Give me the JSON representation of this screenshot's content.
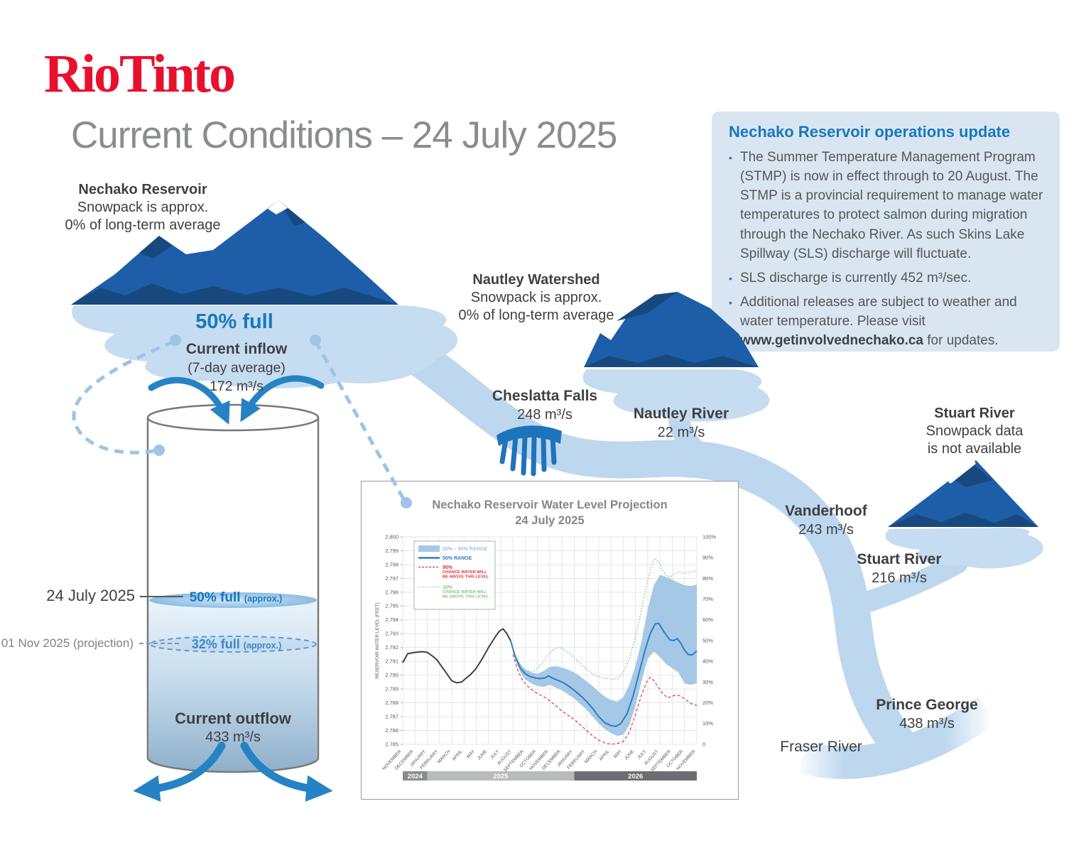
{
  "brand": {
    "logo": "Rio Tinto",
    "color": "#e8112d"
  },
  "title": "Current Conditions – 24 July 2025",
  "update_box": {
    "heading": "Nechako Reservoir operations update",
    "heading_color": "#1878be",
    "bullets": [
      "The Summer Temperature Management Program (STMP) is now in effect through to 20 August. The STMP is a provincial requirement to manage water temperatures to protect salmon during migration through the Nechako River. As such Skins Lake Spillway (SLS) discharge will fluctuate.",
      "SLS discharge is currently 452 m³/sec."
    ],
    "bullet3": {
      "pre": "Additional releases are subject to weather and water temperature. Please visit ",
      "link": "www.getinvolvednechako.ca",
      "post": " for updates."
    }
  },
  "nechako": {
    "name": "Nechako Reservoir",
    "line2": "Snowpack is approx.",
    "line3": "0% of long-term average",
    "fullness": "50% full"
  },
  "inflow": {
    "label": "Current inflow",
    "sub": "(7-day average)",
    "value": "172 m³/s"
  },
  "tank": {
    "now_date": "24 July 2025",
    "now_level": "50% full",
    "now_note": "(approx.)",
    "proj_date": "01 Nov 2025 (projection)",
    "proj_level": "32% full",
    "proj_note": "(approx.)"
  },
  "outflow": {
    "label": "Current outflow",
    "value": "433 m³/s"
  },
  "nautley_watershed": {
    "name": "Nautley Watershed",
    "line2": "Snowpack is approx.",
    "line3": "0% of long-term average"
  },
  "cheslatta": {
    "name": "Cheslatta Falls",
    "value": "248 m³/s"
  },
  "nautley_river": {
    "name": "Nautley River",
    "value": "22 m³/s"
  },
  "stuart_watershed": {
    "name": "Stuart River",
    "line2": "Snowpack data",
    "line3": "is not available"
  },
  "vanderhoof": {
    "name": "Vanderhoof",
    "value": "243 m³/s"
  },
  "stuart_river": {
    "name": "Stuart River",
    "value": "216 m³/s"
  },
  "prince_george": {
    "name": "Prince George",
    "value": "438 m³/s"
  },
  "fraser_river": {
    "name": "Fraser River"
  },
  "colors": {
    "river": "#bdd7ee",
    "reservoir_blob": "#c6dcf0",
    "mountain": "#1e5ea9",
    "mountain_shadow": "#17497f",
    "arrow_blue": "#2583c5",
    "accent_blue": "#1878be",
    "brand_red": "#e8112d"
  },
  "chart_data": {
    "type": "line",
    "title_line1": "Nechako Reservoir Water Level Projection",
    "title_line2": "24 July 2025",
    "ylabel": "RESERVOIR WATER LEVEL (FEET)",
    "ylim": [
      2785,
      2800
    ],
    "y2lim": [
      0,
      100
    ],
    "y2_suffix": "%",
    "grid": true,
    "legend_position": "top-left",
    "months": [
      "NOVEMBER",
      "DECEMBER",
      "JANUARY",
      "FEBRUARY",
      "MARCH",
      "APRIL",
      "MAY",
      "JUNE",
      "JULY",
      "AUGUST",
      "SEPTEMBER",
      "OCTOBER",
      "NOVEMBER",
      "DECEMBER",
      "JANUARY",
      "FEBRUARY",
      "MARCH",
      "APRIL",
      "MAY",
      "JUNE",
      "JULY",
      "AUGUST",
      "SEPTEMBER",
      "OCTOBER",
      "NOVEMBER"
    ],
    "year_bar": [
      {
        "label": "2024",
        "from": 0,
        "to": 2,
        "color": "#8a8c8e"
      },
      {
        "label": "2025",
        "from": 2,
        "to": 14,
        "color": "#b9babc"
      },
      {
        "label": "2026",
        "from": 14,
        "to": 24,
        "color": "#6d6e71"
      }
    ],
    "legend": [
      {
        "type": "area",
        "color": "#a5c8e6",
        "text_color": "#9dc3e6",
        "label": "20% – 80% RANGE"
      },
      {
        "type": "line",
        "color": "#2e7ec0",
        "text_color": "#2e7ec0",
        "label": "50% RANGE"
      },
      {
        "type": "dash",
        "color": "#e0313a",
        "text_color": "#e0313a",
        "label": "90%",
        "sub": [
          "CHANCE WATER WILL",
          "BE ABOVE THIS LEVEL"
        ]
      },
      {
        "type": "dot",
        "color": "#6cbf70",
        "text_color": "#7fc47f",
        "label": "10%",
        "sub": [
          "CHANCE WATER WILL",
          "BE ABOVE THIS LEVEL"
        ]
      }
    ],
    "series": {
      "historical": {
        "name": "Observed water level",
        "color": "#3f4042",
        "points": [
          [
            0,
            2790.9
          ],
          [
            0.4,
            2791.55
          ],
          [
            1,
            2791.65
          ],
          [
            1.6,
            2791.7
          ],
          [
            2,
            2791.65
          ],
          [
            2.4,
            2791.4
          ],
          [
            2.8,
            2791.1
          ],
          [
            3.2,
            2790.6
          ],
          [
            3.6,
            2790.1
          ],
          [
            4,
            2789.6
          ],
          [
            4.4,
            2789.45
          ],
          [
            4.8,
            2789.5
          ],
          [
            5.2,
            2789.8
          ],
          [
            5.6,
            2790.1
          ],
          [
            6,
            2790.5
          ],
          [
            6.5,
            2791.2
          ],
          [
            7,
            2792.0
          ],
          [
            7.5,
            2792.7
          ],
          [
            7.9,
            2793.2
          ],
          [
            8.2,
            2793.35
          ],
          [
            8.5,
            2793.0
          ],
          [
            8.8,
            2792.5
          ]
        ]
      },
      "median": {
        "name": "50% RANGE",
        "color": "#2e7ec0",
        "points": [
          [
            8.8,
            2792.5
          ],
          [
            9.2,
            2791.3
          ],
          [
            9.6,
            2790.5
          ],
          [
            10,
            2790.1
          ],
          [
            10.4,
            2789.9
          ],
          [
            10.8,
            2789.8
          ],
          [
            11.2,
            2789.75
          ],
          [
            11.6,
            2789.8
          ],
          [
            11.9,
            2789.95
          ],
          [
            12.2,
            2789.8
          ],
          [
            12.6,
            2789.65
          ],
          [
            13,
            2789.5
          ],
          [
            13.4,
            2789.3
          ],
          [
            14,
            2788.9
          ],
          [
            14.6,
            2788.45
          ],
          [
            15,
            2788.1
          ],
          [
            15.5,
            2787.6
          ],
          [
            16,
            2787.0
          ],
          [
            16.5,
            2786.55
          ],
          [
            17,
            2786.35
          ],
          [
            17.4,
            2786.3
          ],
          [
            17.8,
            2786.5
          ],
          [
            18.3,
            2787.2
          ],
          [
            18.8,
            2788.5
          ],
          [
            19.3,
            2790.2
          ],
          [
            19.8,
            2791.9
          ],
          [
            20.2,
            2793.0
          ],
          [
            20.6,
            2793.7
          ],
          [
            20.9,
            2793.75
          ],
          [
            21.2,
            2793.3
          ],
          [
            21.5,
            2792.9
          ],
          [
            21.8,
            2792.55
          ],
          [
            22.1,
            2792.5
          ],
          [
            22.4,
            2792.65
          ],
          [
            22.7,
            2792.3
          ],
          [
            23,
            2791.8
          ],
          [
            23.3,
            2791.5
          ],
          [
            23.6,
            2791.45
          ],
          [
            23.8,
            2791.6
          ],
          [
            24,
            2791.75
          ]
        ]
      },
      "p90": {
        "name": "90% CHANCE WATER WILL BE ABOVE THIS LEVEL",
        "color": "#e0313a",
        "dash": "4,3",
        "points": [
          [
            9,
            2791.5
          ],
          [
            9.4,
            2790.3
          ],
          [
            9.8,
            2789.6
          ],
          [
            10.2,
            2789.2
          ],
          [
            10.6,
            2788.9
          ],
          [
            11,
            2788.65
          ],
          [
            11.4,
            2788.5
          ],
          [
            11.8,
            2788.3
          ],
          [
            12.2,
            2788.0
          ],
          [
            12.6,
            2787.7
          ],
          [
            13,
            2787.4
          ],
          [
            13.5,
            2787.1
          ],
          [
            14,
            2786.8
          ],
          [
            14.5,
            2786.4
          ],
          [
            15,
            2786.0
          ],
          [
            15.5,
            2785.6
          ],
          [
            16,
            2785.3
          ],
          [
            16.5,
            2785.1
          ],
          [
            17,
            2785.0
          ],
          [
            17.5,
            2785.05
          ],
          [
            18,
            2785.2
          ],
          [
            18.5,
            2785.9
          ],
          [
            19,
            2787.2
          ],
          [
            19.5,
            2788.6
          ],
          [
            19.9,
            2789.5
          ],
          [
            20.2,
            2789.85
          ],
          [
            20.5,
            2789.6
          ],
          [
            20.8,
            2789.2
          ],
          [
            21.2,
            2788.7
          ],
          [
            21.6,
            2788.35
          ],
          [
            22,
            2788.5
          ],
          [
            22.5,
            2788.55
          ],
          [
            23,
            2788.3
          ],
          [
            23.5,
            2787.95
          ],
          [
            24,
            2787.8
          ]
        ]
      },
      "p10": {
        "name": "10% CHANCE WATER WILL BE ABOVE THIS LEVEL",
        "color": "#6cbf70",
        "dash": "1.5,2.5",
        "points": [
          [
            9,
            2791.7
          ],
          [
            9.4,
            2790.9
          ],
          [
            9.8,
            2790.5
          ],
          [
            10.2,
            2790.3
          ],
          [
            10.6,
            2790.25
          ],
          [
            11,
            2790.5
          ],
          [
            11.4,
            2790.9
          ],
          [
            11.8,
            2791.4
          ],
          [
            12.2,
            2791.8
          ],
          [
            12.6,
            2792.0
          ],
          [
            13,
            2791.95
          ],
          [
            13.4,
            2791.7
          ],
          [
            13.8,
            2791.4
          ],
          [
            14.3,
            2791.0
          ],
          [
            14.8,
            2790.6
          ],
          [
            15.3,
            2790.2
          ],
          [
            15.8,
            2789.95
          ],
          [
            16.3,
            2789.8
          ],
          [
            16.8,
            2789.75
          ],
          [
            17.2,
            2789.7
          ],
          [
            17.6,
            2789.8
          ],
          [
            18,
            2790.2
          ],
          [
            18.5,
            2791.2
          ],
          [
            19,
            2792.8
          ],
          [
            19.5,
            2794.8
          ],
          [
            19.9,
            2796.5
          ],
          [
            20.3,
            2797.9
          ],
          [
            20.6,
            2798.5
          ],
          [
            20.9,
            2798.2
          ],
          [
            21.2,
            2797.6
          ],
          [
            21.5,
            2797.2
          ],
          [
            21.8,
            2797.1
          ],
          [
            22.2,
            2797.35
          ],
          [
            22.6,
            2797.5
          ],
          [
            23,
            2797.35
          ],
          [
            23.4,
            2797.45
          ],
          [
            23.7,
            2797.5
          ],
          [
            24,
            2797.55
          ]
        ]
      },
      "band": {
        "name": "20% – 80% RANGE",
        "color": "#a5c8e6",
        "points": [
          [
            8.8,
            2792.5,
            2792.5
          ],
          [
            9.2,
            2791.1,
            2791.5
          ],
          [
            9.6,
            2790.2,
            2790.8
          ],
          [
            10,
            2789.7,
            2790.4
          ],
          [
            10.5,
            2789.4,
            2790.2
          ],
          [
            11,
            2789.2,
            2790.1
          ],
          [
            11.5,
            2789.15,
            2790.3
          ],
          [
            12,
            2789.3,
            2790.6
          ],
          [
            12.5,
            2789.1,
            2790.65
          ],
          [
            13,
            2788.9,
            2790.55
          ],
          [
            13.5,
            2788.6,
            2790.4
          ],
          [
            14,
            2788.3,
            2790.2
          ],
          [
            14.5,
            2787.9,
            2789.9
          ],
          [
            15,
            2787.5,
            2789.55
          ],
          [
            15.5,
            2787.0,
            2789.2
          ],
          [
            16,
            2786.5,
            2788.8
          ],
          [
            16.5,
            2786.1,
            2788.45
          ],
          [
            17,
            2785.8,
            2788.2
          ],
          [
            17.5,
            2785.6,
            2788.1
          ],
          [
            18,
            2785.7,
            2788.4
          ],
          [
            18.5,
            2786.4,
            2789.3
          ],
          [
            19,
            2787.8,
            2790.7
          ],
          [
            19.5,
            2789.6,
            2792.5
          ],
          [
            20,
            2791.2,
            2794.8
          ],
          [
            20.5,
            2791.7,
            2796.5
          ],
          [
            21,
            2791.3,
            2797.25
          ],
          [
            21.5,
            2790.8,
            2797.1
          ],
          [
            22,
            2790.5,
            2796.9
          ],
          [
            22.5,
            2790.2,
            2796.7
          ],
          [
            23,
            2789.4,
            2796.5
          ],
          [
            23.5,
            2789.3,
            2796.45
          ],
          [
            24,
            2789.4,
            2796.55
          ]
        ]
      }
    }
  }
}
